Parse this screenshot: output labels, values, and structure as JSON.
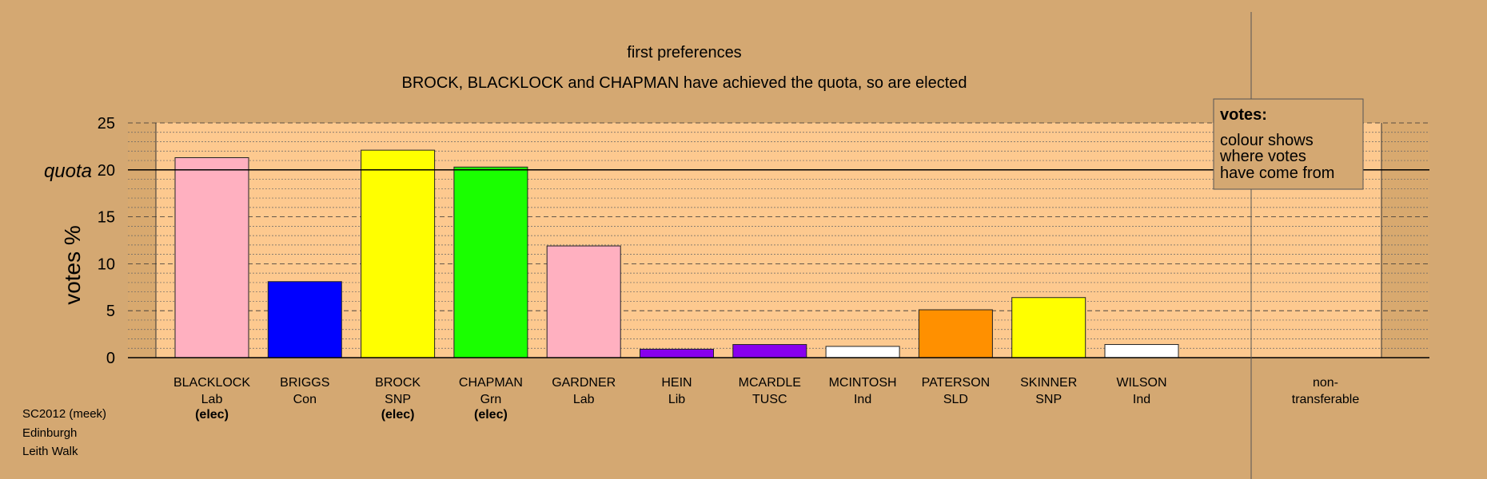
{
  "chart_data": {
    "type": "bar",
    "title": "first preferences",
    "subtitle": "BROCK, BLACKLOCK and CHAPMAN have achieved the quota, so are elected",
    "ylabel": "votes %",
    "quota_label": "quota",
    "quota": 20,
    "ylim": [
      0,
      25
    ],
    "yticks": [
      "0",
      "5",
      "10",
      "15",
      "20",
      "25"
    ],
    "grid": true,
    "candidates": [
      {
        "name": "BLACKLOCK",
        "party": "Lab",
        "elected": "(elec)",
        "value": 21.3,
        "color": "#ffb0c0"
      },
      {
        "name": "BRIGGS",
        "party": "Con",
        "elected": "",
        "value": 8.1,
        "color": "#0000ff"
      },
      {
        "name": "BROCK",
        "party": "SNP",
        "elected": "(elec)",
        "value": 22.1,
        "color": "#ffff00"
      },
      {
        "name": "CHAPMAN",
        "party": "Grn",
        "elected": "(elec)",
        "value": 20.3,
        "color": "#1aff00"
      },
      {
        "name": "GARDNER",
        "party": "Lab",
        "elected": "",
        "value": 11.9,
        "color": "#ffb0c0"
      },
      {
        "name": "HEIN",
        "party": "Lib",
        "elected": "",
        "value": 0.9,
        "color": "#8800ee"
      },
      {
        "name": "MCARDLE",
        "party": "TUSC",
        "elected": "",
        "value": 1.4,
        "color": "#8800ee"
      },
      {
        "name": "MCINTOSH",
        "party": "Ind",
        "elected": "",
        "value": 1.2,
        "color": "#ffffff"
      },
      {
        "name": "PATERSON",
        "party": "SLD",
        "elected": "",
        "value": 5.1,
        "color": "#ff9000"
      },
      {
        "name": "SKINNER",
        "party": "SNP",
        "elected": "",
        "value": 6.4,
        "color": "#ffff00"
      },
      {
        "name": "WILSON",
        "party": "Ind",
        "elected": "",
        "value": 1.4,
        "color": "#ffffff"
      }
    ],
    "nontransferable": {
      "line1": "non-",
      "line2": "transferable",
      "value": 0
    },
    "legend": {
      "placement": "top-right",
      "title": "votes:",
      "lines": [
        "colour shows",
        "where votes",
        "have come from"
      ]
    }
  },
  "info": {
    "election": "SC2012 (meek)",
    "council": "Edinburgh",
    "ward": "Leith Walk"
  },
  "colors": {
    "background": "#d4a872",
    "plot_bg": "#fdc98f",
    "side_panel": "#d8a96f"
  }
}
